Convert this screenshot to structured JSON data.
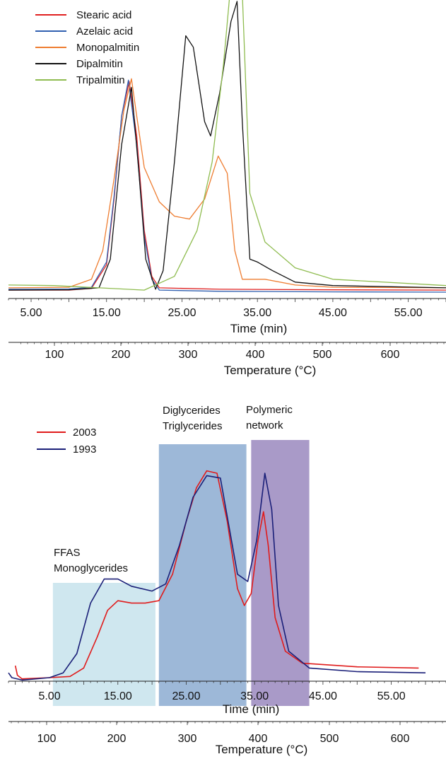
{
  "chart_data": [
    {
      "type": "line",
      "x_unit": "min",
      "xlim": [
        2.0,
        60.0
      ],
      "ylim": [
        0,
        1.0
      ],
      "xlabel": "Time (min)",
      "x_ticks": [
        "5.00",
        "15.00",
        "25.00",
        "35.00",
        "45.00",
        "55.00"
      ],
      "secondary_xlabel": "Temperature (°C)",
      "secondary_ticks": [
        "100",
        "200",
        "300",
        "400",
        "500",
        "600"
      ],
      "legend_position": "top-left",
      "series": [
        {
          "name": "Stearic acid",
          "color": "#e02020",
          "points": [
            [
              2,
              0.012
            ],
            [
              10,
              0.012
            ],
            [
              13,
              0.018
            ],
            [
              15,
              0.1
            ],
            [
              16,
              0.33
            ],
            [
              17,
              0.62
            ],
            [
              18,
              0.74
            ],
            [
              19,
              0.55
            ],
            [
              20,
              0.22
            ],
            [
              21,
              0.06
            ],
            [
              22,
              0.02
            ],
            [
              30,
              0.015
            ],
            [
              45,
              0.013
            ],
            [
              60,
              0.012
            ]
          ]
        },
        {
          "name": "Azelaic acid",
          "color": "#3060b0",
          "points": [
            [
              2,
              0.015
            ],
            [
              10,
              0.016
            ],
            [
              13,
              0.022
            ],
            [
              15,
              0.11
            ],
            [
              16,
              0.34
            ],
            [
              17,
              0.62
            ],
            [
              17.9,
              0.745
            ],
            [
              19,
              0.52
            ],
            [
              20,
              0.2
            ],
            [
              21,
              0.05
            ],
            [
              22,
              0.012
            ],
            [
              30,
              0.008
            ],
            [
              45,
              0.006
            ],
            [
              60,
              0.005
            ]
          ]
        },
        {
          "name": "Monopalmitin",
          "color": "#ee7d31",
          "points": [
            [
              2,
              0.02
            ],
            [
              10,
              0.022
            ],
            [
              13,
              0.05
            ],
            [
              14.5,
              0.15
            ],
            [
              16,
              0.4
            ],
            [
              17.3,
              0.64
            ],
            [
              18.3,
              0.75
            ],
            [
              19,
              0.62
            ],
            [
              20,
              0.44
            ],
            [
              22,
              0.32
            ],
            [
              24,
              0.27
            ],
            [
              26,
              0.26
            ],
            [
              28,
              0.33
            ],
            [
              29.8,
              0.48
            ],
            [
              31,
              0.42
            ],
            [
              32,
              0.15
            ],
            [
              33,
              0.05
            ],
            [
              36,
              0.05
            ],
            [
              40,
              0.03
            ],
            [
              45,
              0.022
            ],
            [
              60,
              0.02
            ]
          ]
        },
        {
          "name": "Dipalmitin",
          "color": "#111111",
          "points": [
            [
              2,
              0.012
            ],
            [
              10,
              0.013
            ],
            [
              14,
              0.02
            ],
            [
              15.5,
              0.12
            ],
            [
              17,
              0.52
            ],
            [
              18.3,
              0.72
            ],
            [
              19.3,
              0.42
            ],
            [
              20.2,
              0.12
            ],
            [
              21.5,
              0.015
            ],
            [
              22.5,
              0.08
            ],
            [
              24,
              0.46
            ],
            [
              25.5,
              0.9
            ],
            [
              26.5,
              0.86
            ],
            [
              28,
              0.6
            ],
            [
              28.8,
              0.55
            ],
            [
              30,
              0.7
            ],
            [
              31.5,
              0.95
            ],
            [
              32.3,
              1.02
            ],
            [
              33,
              0.6
            ],
            [
              34,
              0.12
            ],
            [
              35,
              0.11
            ],
            [
              37,
              0.08
            ],
            [
              40,
              0.04
            ],
            [
              45,
              0.028
            ],
            [
              60,
              0.02
            ]
          ]
        },
        {
          "name": "Tripalmitin",
          "color": "#8fbc50",
          "points": [
            [
              2,
              0.03
            ],
            [
              8,
              0.028
            ],
            [
              14,
              0.02
            ],
            [
              20,
              0.012
            ],
            [
              24,
              0.06
            ],
            [
              27,
              0.22
            ],
            [
              29,
              0.46
            ],
            [
              30.5,
              0.8
            ],
            [
              31.6,
              1.12
            ],
            [
              32.4,
              1.4
            ],
            [
              33,
              1.05
            ],
            [
              34,
              0.35
            ],
            [
              36,
              0.18
            ],
            [
              40,
              0.09
            ],
            [
              45,
              0.05
            ],
            [
              60,
              0.028
            ]
          ]
        }
      ]
    },
    {
      "type": "line",
      "x_unit": "min",
      "xlim": [
        -1.0,
        63.0
      ],
      "ylim": [
        0,
        1.0
      ],
      "xlabel": "Time (min)",
      "x_ticks": [
        "5.00",
        "15.00",
        "25.00",
        "35.00",
        "45.00",
        "55.00"
      ],
      "secondary_xlabel": "Temperature (°C)",
      "secondary_ticks": [
        "100",
        "200",
        "300",
        "400",
        "500",
        "600"
      ],
      "legend_position": "top-left",
      "series": [
        {
          "name": "2003",
          "color": "#e01b1b",
          "points": [
            [
              0,
              0.1
            ],
            [
              0.3,
              0.06
            ],
            [
              1,
              0.045
            ],
            [
              5,
              0.05
            ],
            [
              8,
              0.055
            ],
            [
              10,
              0.09
            ],
            [
              12,
              0.22
            ],
            [
              13.5,
              0.33
            ],
            [
              15,
              0.37
            ],
            [
              17,
              0.36
            ],
            [
              19,
              0.36
            ],
            [
              21,
              0.37
            ],
            [
              23,
              0.48
            ],
            [
              25,
              0.7
            ],
            [
              26.5,
              0.84
            ],
            [
              28,
              0.91
            ],
            [
              29.5,
              0.9
            ],
            [
              31,
              0.7
            ],
            [
              32.5,
              0.42
            ],
            [
              33.5,
              0.35
            ],
            [
              34.5,
              0.4
            ],
            [
              35.5,
              0.62
            ],
            [
              36.3,
              0.74
            ],
            [
              37,
              0.6
            ],
            [
              38,
              0.3
            ],
            [
              39.5,
              0.16
            ],
            [
              42,
              0.11
            ],
            [
              50,
              0.095
            ],
            [
              59,
              0.09
            ]
          ]
        },
        {
          "name": "1993",
          "color": "#1a1f78",
          "points": [
            [
              -1,
              0.07
            ],
            [
              -0.5,
              0.05
            ],
            [
              1,
              0.04
            ],
            [
              5,
              0.05
            ],
            [
              7,
              0.07
            ],
            [
              9,
              0.15
            ],
            [
              11,
              0.36
            ],
            [
              13,
              0.46
            ],
            [
              15,
              0.46
            ],
            [
              17,
              0.43
            ],
            [
              20,
              0.41
            ],
            [
              22,
              0.44
            ],
            [
              24,
              0.6
            ],
            [
              26,
              0.8
            ],
            [
              28,
              0.89
            ],
            [
              30,
              0.88
            ],
            [
              31,
              0.72
            ],
            [
              32.5,
              0.48
            ],
            [
              34,
              0.45
            ],
            [
              35.3,
              0.62
            ],
            [
              36.5,
              0.9
            ],
            [
              37.5,
              0.75
            ],
            [
              38.5,
              0.35
            ],
            [
              40,
              0.16
            ],
            [
              43,
              0.09
            ],
            [
              50,
              0.075
            ],
            [
              60,
              0.07
            ]
          ]
        }
      ],
      "regions": [
        {
          "label_lines": [
            "FFAS",
            "Monoglycerides"
          ],
          "x": [
            5.5,
            20.5
          ],
          "color": "#cfe7ef"
        },
        {
          "label_lines": [
            "Diglycerides",
            "Triglycerides"
          ],
          "x": [
            21.0,
            33.8
          ],
          "color": "#9db8d8"
        },
        {
          "label_lines": [
            "Polymeric",
            "network"
          ],
          "x": [
            34.5,
            43.0
          ],
          "color": "#a99ac8"
        }
      ]
    }
  ]
}
